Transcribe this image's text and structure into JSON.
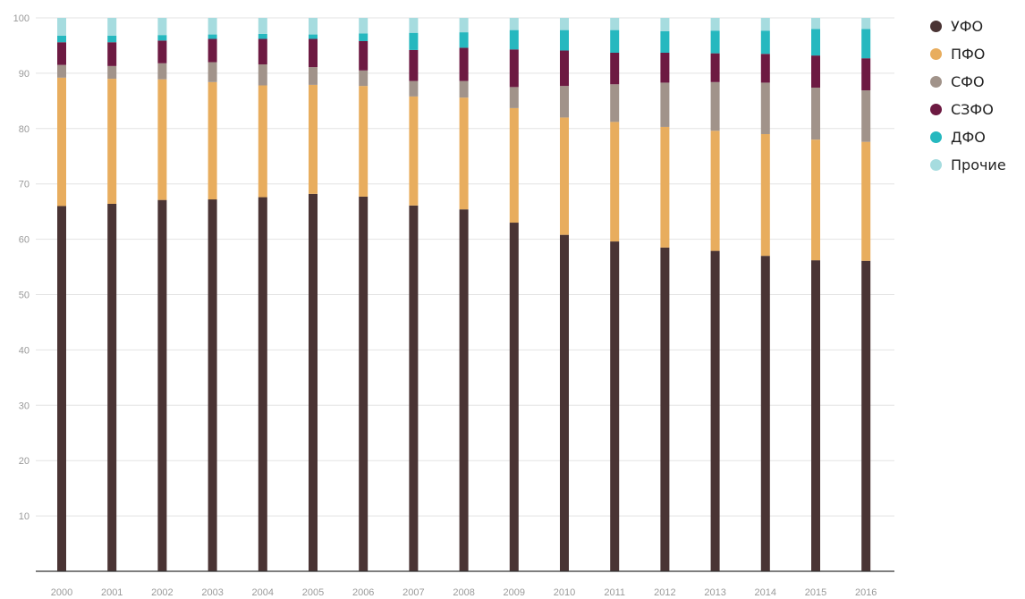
{
  "chart_data": {
    "type": "bar",
    "stacked": true,
    "categories": [
      "2000",
      "2001",
      "2002",
      "2003",
      "2004",
      "2005",
      "2006",
      "2007",
      "2008",
      "2009",
      "2010",
      "2011",
      "2012",
      "2013",
      "2014",
      "2015",
      "2016"
    ],
    "series": [
      {
        "name": "УФО",
        "color": "#4a3434",
        "values": [
          66.0,
          66.4,
          67.1,
          67.2,
          67.6,
          68.2,
          67.7,
          66.1,
          65.4,
          63.0,
          60.8,
          59.6,
          58.5,
          57.9,
          57.0,
          56.2,
          56.1
        ]
      },
      {
        "name": "ПФО",
        "color": "#e8ad5e",
        "values": [
          23.2,
          22.6,
          21.8,
          21.2,
          20.2,
          19.7,
          20.0,
          19.7,
          20.2,
          20.7,
          21.2,
          21.6,
          21.8,
          21.7,
          22.0,
          21.8,
          21.5
        ]
      },
      {
        "name": "СФО",
        "color": "#a1938a",
        "values": [
          2.3,
          2.3,
          2.9,
          3.6,
          3.8,
          3.2,
          2.8,
          2.8,
          3.0,
          3.8,
          5.7,
          6.8,
          8.0,
          8.8,
          9.3,
          9.4,
          9.3
        ]
      },
      {
        "name": "СЗФО",
        "color": "#6d1a42",
        "values": [
          4.1,
          4.3,
          4.1,
          4.2,
          4.6,
          5.1,
          5.3,
          5.6,
          6.0,
          6.8,
          6.4,
          5.7,
          5.4,
          5.2,
          5.2,
          5.8,
          5.8
        ]
      },
      {
        "name": "ДФО",
        "color": "#26b8bf",
        "values": [
          1.2,
          1.2,
          1.0,
          0.8,
          0.9,
          0.8,
          1.4,
          3.1,
          2.8,
          3.5,
          3.7,
          4.1,
          3.9,
          4.1,
          4.2,
          4.8,
          5.3
        ]
      },
      {
        "name": "Прочие",
        "color": "#a6dcdf",
        "values": [
          3.2,
          3.2,
          3.1,
          3.0,
          2.9,
          3.0,
          2.8,
          2.7,
          2.6,
          2.2,
          2.2,
          2.2,
          2.4,
          2.3,
          2.3,
          2.0,
          2.0
        ]
      }
    ],
    "ylim": [
      0,
      100
    ],
    "yticks": [
      "10",
      "20",
      "30",
      "40",
      "50",
      "60",
      "70",
      "80",
      "90",
      "100"
    ],
    "grid": true,
    "legend_position": "right"
  }
}
